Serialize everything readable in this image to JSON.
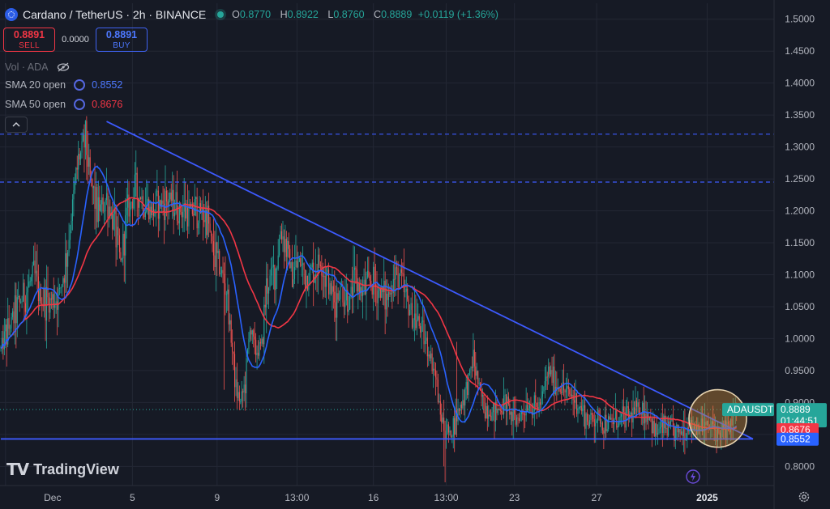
{
  "header": {
    "title": "Cardano / TetherUS · 2h · BINANCE",
    "ohlc": [
      {
        "key": "O",
        "value": "0.8770"
      },
      {
        "key": "H",
        "value": "0.8922"
      },
      {
        "key": "L",
        "value": "0.8760"
      },
      {
        "key": "C",
        "value": "0.8889"
      }
    ],
    "change": "+0.0119 (+1.36%)"
  },
  "trade": {
    "sell_price": "0.8891",
    "sell_label": "SELL",
    "spread": "0.0000",
    "buy_price": "0.8891",
    "buy_label": "BUY"
  },
  "indicators": {
    "vol_label": "Vol · ADA",
    "sma20_label": "SMA 20 open",
    "sma20_value": "0.8552",
    "sma50_label": "SMA 50 open",
    "sma50_value": "0.8676"
  },
  "collapse_icon": "chevron-up-icon",
  "brand": "TradingView",
  "colors": {
    "background": "#161a25",
    "up": "#26a69a",
    "down": "#ef5350",
    "sma20": "#2962ff",
    "sma50": "#f23645",
    "trendline": "#3d5afe",
    "dashed": "#3d5afe",
    "highlight": "#c8893a"
  },
  "chart_data": {
    "type": "candlestick",
    "symbol": "ADAUSDT",
    "last_price": "0.8889",
    "countdown": "01:44:51",
    "sma50_tag": "0.8676",
    "sma20_tag": "0.8552",
    "y_ticks": [
      "1.5000",
      "1.4500",
      "1.4000",
      "1.3500",
      "1.3000",
      "1.2500",
      "1.2000",
      "1.1500",
      "1.1000",
      "1.0500",
      "1.0000",
      "0.9500",
      "0.9000",
      "0.8500",
      "0.8000"
    ],
    "y_range": [
      0.77,
      1.525
    ],
    "x_labels": [
      "Dec",
      "5",
      "9",
      "13:00",
      "16",
      "13:00",
      "23",
      "27",
      "2025"
    ],
    "x_label_bars": [
      4,
      112,
      184,
      252,
      317,
      379,
      437,
      507,
      601
    ],
    "total_bars": 627,
    "close_anchors": [
      [
        0,
        0.985
      ],
      [
        10,
        1.03
      ],
      [
        20,
        1.07
      ],
      [
        28,
        1.1
      ],
      [
        34,
        1.06
      ],
      [
        42,
        1.06
      ],
      [
        50,
        1.07
      ],
      [
        56,
        1.13
      ],
      [
        62,
        1.22
      ],
      [
        66,
        1.28
      ],
      [
        72,
        1.31
      ],
      [
        76,
        1.25
      ],
      [
        82,
        1.2
      ],
      [
        90,
        1.22
      ],
      [
        96,
        1.18
      ],
      [
        102,
        1.12
      ],
      [
        108,
        1.2
      ],
      [
        114,
        1.23
      ],
      [
        120,
        1.22
      ],
      [
        128,
        1.2
      ],
      [
        136,
        1.21
      ],
      [
        144,
        1.22
      ],
      [
        152,
        1.2
      ],
      [
        160,
        1.2
      ],
      [
        168,
        1.2
      ],
      [
        176,
        1.19
      ],
      [
        180,
        1.14
      ],
      [
        186,
        1.11
      ],
      [
        192,
        1.08
      ],
      [
        196,
        1.0
      ],
      [
        200,
        0.92
      ],
      [
        204,
        0.9
      ],
      [
        208,
        0.93
      ],
      [
        212,
        1.02
      ],
      [
        216,
        0.98
      ],
      [
        222,
        0.99
      ],
      [
        226,
        1.08
      ],
      [
        230,
        1.1
      ],
      [
        234,
        1.11
      ],
      [
        238,
        1.17
      ],
      [
        242,
        1.15
      ],
      [
        248,
        1.1
      ],
      [
        254,
        1.12
      ],
      [
        260,
        1.1
      ],
      [
        266,
        1.11
      ],
      [
        272,
        1.12
      ],
      [
        278,
        1.09
      ],
      [
        284,
        1.06
      ],
      [
        290,
        1.08
      ],
      [
        296,
        1.06
      ],
      [
        302,
        1.09
      ],
      [
        308,
        1.07
      ],
      [
        314,
        1.09
      ],
      [
        320,
        1.08
      ],
      [
        328,
        1.06
      ],
      [
        334,
        1.09
      ],
      [
        340,
        1.1
      ],
      [
        344,
        1.06
      ],
      [
        350,
        1.04
      ],
      [
        356,
        1.02
      ],
      [
        362,
        0.99
      ],
      [
        366,
        0.97
      ],
      [
        370,
        0.94
      ],
      [
        374,
        0.88
      ],
      [
        378,
        0.86
      ],
      [
        382,
        0.85
      ],
      [
        388,
        0.88
      ],
      [
        392,
        0.9
      ],
      [
        396,
        0.92
      ],
      [
        402,
        0.97
      ],
      [
        406,
        0.93
      ],
      [
        410,
        0.9
      ],
      [
        418,
        0.88
      ],
      [
        424,
        0.89
      ],
      [
        430,
        0.9
      ],
      [
        436,
        0.87
      ],
      [
        442,
        0.88
      ],
      [
        448,
        0.9
      ],
      [
        454,
        0.89
      ],
      [
        460,
        0.9
      ],
      [
        466,
        0.95
      ],
      [
        472,
        0.93
      ],
      [
        478,
        0.92
      ],
      [
        486,
        0.91
      ],
      [
        494,
        0.89
      ],
      [
        500,
        0.87
      ],
      [
        506,
        0.88
      ],
      [
        512,
        0.87
      ],
      [
        520,
        0.87
      ],
      [
        528,
        0.875
      ],
      [
        536,
        0.88
      ],
      [
        544,
        0.89
      ],
      [
        552,
        0.88
      ],
      [
        556,
        0.85
      ],
      [
        562,
        0.86
      ],
      [
        570,
        0.86
      ],
      [
        576,
        0.85
      ],
      [
        582,
        0.86
      ],
      [
        590,
        0.865
      ],
      [
        600,
        0.86
      ],
      [
        606,
        0.86
      ],
      [
        612,
        0.85
      ],
      [
        620,
        0.86
      ],
      [
        626,
        0.8889
      ]
    ],
    "annotations": {
      "descending_trendline": {
        "from": [
          90,
          1.34
        ],
        "to": [
          640,
          0.8429
        ]
      },
      "support_line": {
        "from": [
          0,
          0.8429
        ],
        "to": [
          640,
          0.8429
        ]
      },
      "resistance_dashed_1": 1.32,
      "resistance_dashed_2": 1.245,
      "last_price_dotted": 0.8889,
      "highlight_circle_center": [
        610,
        0.875
      ],
      "highlight_circle_radius_price": 0.045
    }
  }
}
